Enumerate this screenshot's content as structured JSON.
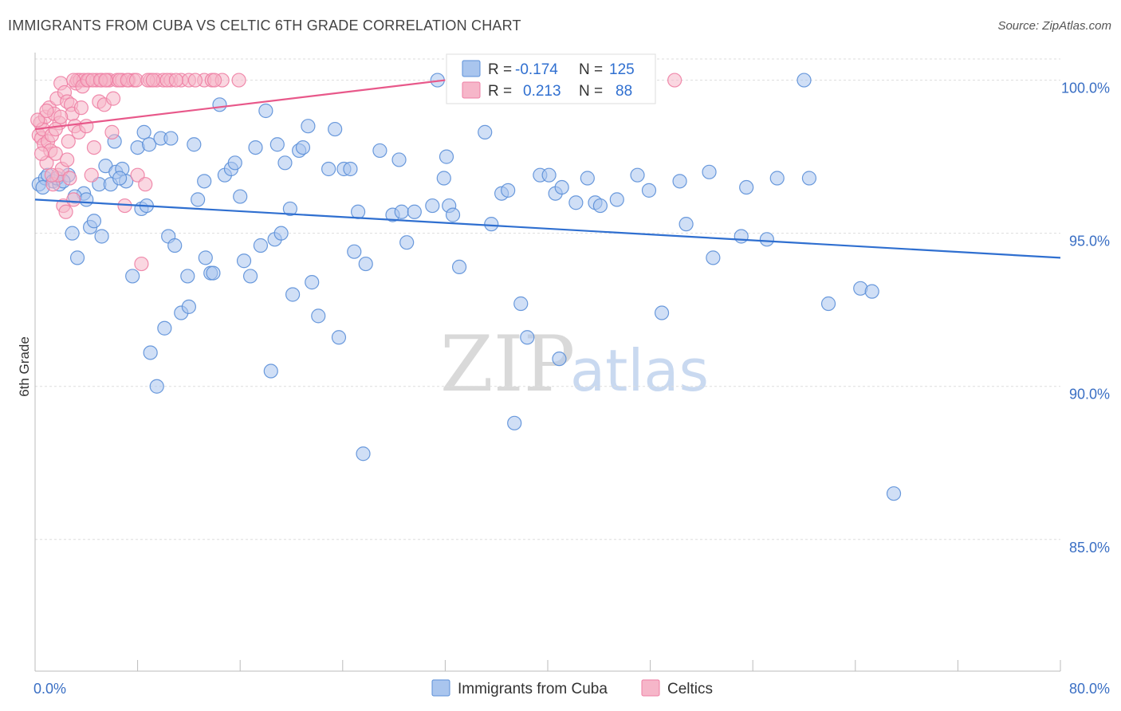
{
  "header": {
    "title": "IMMIGRANTS FROM CUBA VS CELTIC 6TH GRADE CORRELATION CHART",
    "source": "Source: ZipAtlas.com"
  },
  "watermark": {
    "zip": "ZIP",
    "atlas": "atlas"
  },
  "legend_box": {
    "rows": [
      {
        "r_label": "R =",
        "r_value": "-0.174",
        "n_label": "N =",
        "n_value": "125",
        "color": "#a9c5ee"
      },
      {
        "r_label": "R =",
        "r_value": "0.213",
        "n_label": "N =",
        "n_value": "88",
        "color": "#f6b6c9"
      }
    ]
  },
  "bottom_legend": [
    {
      "label": "Immigrants from Cuba",
      "color": "#a9c5ee"
    },
    {
      "label": "Celtics",
      "color": "#f6b6c9"
    }
  ],
  "chart_data": {
    "type": "scatter",
    "title": "IMMIGRANTS FROM CUBA VS CELTIC 6TH GRADE CORRELATION CHART",
    "xlabel": "",
    "ylabel": "6th Grade",
    "xlim": [
      0,
      80
    ],
    "ylim": [
      80.7,
      100.9
    ],
    "x_tick_labels": [
      "0.0%",
      "80.0%"
    ],
    "y_ticks": [
      85,
      90,
      95,
      100
    ],
    "y_tick_labels": [
      "85.0%",
      "90.0%",
      "95.0%",
      "100.0%"
    ],
    "grid": true,
    "colors": {
      "cuba": "#5b8fd8",
      "cuba_fill": "#a9c5ee",
      "cuba_line": "#2f6fd0",
      "celtics": "#ee7fa4",
      "celtics_fill": "#f6b6c9",
      "celtics_line": "#e8588a"
    },
    "series": [
      {
        "name": "Immigrants from Cuba",
        "trend": {
          "x": [
            0,
            80
          ],
          "y": [
            96.1,
            94.2
          ]
        },
        "points": [
          [
            0.3,
            96.6
          ],
          [
            0.8,
            96.8
          ],
          [
            1.0,
            96.9
          ],
          [
            1.4,
            96.7
          ],
          [
            1.9,
            96.6
          ],
          [
            2.6,
            96.9
          ],
          [
            2.9,
            95.0
          ],
          [
            3.3,
            94.2
          ],
          [
            3.8,
            96.3
          ],
          [
            4.3,
            95.2
          ],
          [
            4.6,
            95.4
          ],
          [
            5.0,
            96.6
          ],
          [
            5.2,
            94.9
          ],
          [
            5.5,
            97.2
          ],
          [
            5.9,
            96.6
          ],
          [
            6.2,
            98.0
          ],
          [
            6.3,
            97.0
          ],
          [
            6.8,
            97.1
          ],
          [
            7.1,
            96.7
          ],
          [
            7.6,
            93.6
          ],
          [
            8.0,
            97.8
          ],
          [
            8.3,
            95.8
          ],
          [
            8.5,
            98.3
          ],
          [
            8.7,
            95.9
          ],
          [
            8.9,
            97.9
          ],
          [
            9.0,
            91.1
          ],
          [
            9.5,
            90.0
          ],
          [
            9.8,
            98.1
          ],
          [
            10.1,
            91.9
          ],
          [
            10.4,
            94.9
          ],
          [
            10.6,
            98.1
          ],
          [
            10.9,
            94.6
          ],
          [
            11.4,
            92.4
          ],
          [
            11.9,
            93.6
          ],
          [
            12.0,
            92.6
          ],
          [
            12.4,
            97.9
          ],
          [
            12.7,
            96.1
          ],
          [
            13.2,
            96.7
          ],
          [
            13.3,
            94.2
          ],
          [
            13.7,
            93.7
          ],
          [
            13.9,
            93.7
          ],
          [
            14.4,
            99.2
          ],
          [
            14.8,
            96.9
          ],
          [
            15.3,
            97.1
          ],
          [
            15.6,
            97.3
          ],
          [
            16.0,
            96.2
          ],
          [
            16.3,
            94.1
          ],
          [
            16.8,
            93.6
          ],
          [
            17.2,
            97.8
          ],
          [
            17.6,
            94.6
          ],
          [
            18.0,
            99.0
          ],
          [
            18.4,
            90.5
          ],
          [
            18.7,
            94.8
          ],
          [
            18.9,
            97.9
          ],
          [
            19.2,
            95.0
          ],
          [
            19.5,
            97.3
          ],
          [
            19.9,
            95.8
          ],
          [
            20.1,
            93.0
          ],
          [
            20.6,
            97.7
          ],
          [
            20.9,
            97.8
          ],
          [
            21.3,
            98.5
          ],
          [
            21.6,
            93.4
          ],
          [
            22.1,
            92.3
          ],
          [
            22.9,
            97.1
          ],
          [
            23.4,
            98.4
          ],
          [
            23.7,
            91.6
          ],
          [
            24.1,
            97.1
          ],
          [
            24.6,
            97.1
          ],
          [
            24.9,
            94.4
          ],
          [
            25.2,
            95.7
          ],
          [
            25.8,
            94.0
          ],
          [
            26.9,
            97.7
          ],
          [
            27.9,
            95.6
          ],
          [
            28.4,
            97.4
          ],
          [
            28.6,
            95.7
          ],
          [
            29.0,
            94.7
          ],
          [
            29.6,
            95.7
          ],
          [
            31.0,
            95.9
          ],
          [
            31.4,
            100.0
          ],
          [
            31.9,
            96.8
          ],
          [
            32.1,
            97.5
          ],
          [
            32.3,
            95.9
          ],
          [
            32.6,
            95.6
          ],
          [
            33.1,
            93.9
          ],
          [
            25.6,
            87.8
          ],
          [
            35.1,
            98.3
          ],
          [
            35.6,
            95.3
          ],
          [
            36.4,
            96.3
          ],
          [
            36.9,
            96.4
          ],
          [
            37.4,
            88.8
          ],
          [
            37.9,
            92.7
          ],
          [
            38.4,
            91.6
          ],
          [
            39.4,
            96.9
          ],
          [
            40.1,
            96.9
          ],
          [
            40.6,
            96.3
          ],
          [
            40.9,
            90.9
          ],
          [
            41.1,
            96.5
          ],
          [
            42.2,
            96.0
          ],
          [
            43.1,
            96.8
          ],
          [
            43.7,
            96.0
          ],
          [
            44.1,
            95.9
          ],
          [
            45.4,
            96.1
          ],
          [
            47.0,
            96.9
          ],
          [
            47.9,
            96.4
          ],
          [
            48.9,
            92.4
          ],
          [
            50.3,
            96.7
          ],
          [
            50.8,
            95.3
          ],
          [
            52.6,
            97.0
          ],
          [
            52.9,
            94.2
          ],
          [
            55.1,
            94.9
          ],
          [
            55.5,
            96.5
          ],
          [
            57.1,
            94.8
          ],
          [
            57.9,
            96.8
          ],
          [
            60.0,
            100.0
          ],
          [
            60.4,
            96.8
          ],
          [
            61.9,
            92.7
          ],
          [
            64.4,
            93.2
          ],
          [
            65.3,
            93.1
          ],
          [
            67.0,
            86.5
          ],
          [
            0.6,
            96.5
          ],
          [
            1.7,
            96.8
          ],
          [
            2.2,
            96.7
          ],
          [
            3.1,
            96.2
          ],
          [
            4.0,
            96.1
          ],
          [
            6.6,
            96.8
          ]
        ]
      },
      {
        "name": "Celtics",
        "trend": {
          "x": [
            0,
            32
          ],
          "y": [
            98.4,
            100.0
          ]
        },
        "points": [
          [
            0.3,
            98.2
          ],
          [
            0.4,
            98.6
          ],
          [
            0.5,
            98.1
          ],
          [
            0.6,
            98.4
          ],
          [
            0.7,
            97.9
          ],
          [
            0.8,
            98.8
          ],
          [
            0.9,
            97.3
          ],
          [
            1.0,
            98.0
          ],
          [
            1.1,
            99.1
          ],
          [
            1.2,
            97.7
          ],
          [
            1.3,
            98.2
          ],
          [
            1.4,
            96.6
          ],
          [
            1.5,
            98.9
          ],
          [
            1.6,
            97.6
          ],
          [
            1.7,
            99.4
          ],
          [
            1.8,
            96.9
          ],
          [
            1.9,
            98.6
          ],
          [
            2.0,
            99.9
          ],
          [
            2.1,
            97.1
          ],
          [
            2.2,
            95.9
          ],
          [
            2.3,
            99.6
          ],
          [
            2.4,
            95.7
          ],
          [
            2.5,
            99.3
          ],
          [
            2.6,
            98.0
          ],
          [
            2.7,
            96.8
          ],
          [
            2.8,
            99.2
          ],
          [
            2.9,
            98.9
          ],
          [
            3.0,
            96.1
          ],
          [
            3.1,
            98.5
          ],
          [
            3.2,
            99.9
          ],
          [
            3.3,
            100.0
          ],
          [
            3.4,
            98.3
          ],
          [
            3.5,
            100.0
          ],
          [
            3.6,
            99.1
          ],
          [
            3.8,
            100.0
          ],
          [
            4.0,
            98.5
          ],
          [
            4.2,
            100.0
          ],
          [
            4.4,
            96.9
          ],
          [
            4.6,
            97.8
          ],
          [
            4.8,
            100.0
          ],
          [
            5.0,
            99.3
          ],
          [
            5.2,
            100.0
          ],
          [
            5.4,
            99.2
          ],
          [
            5.6,
            100.0
          ],
          [
            5.8,
            100.0
          ],
          [
            6.1,
            99.4
          ],
          [
            6.4,
            100.0
          ],
          [
            6.8,
            100.0
          ],
          [
            7.0,
            95.9
          ],
          [
            7.3,
            100.0
          ],
          [
            7.7,
            100.0
          ],
          [
            8.0,
            96.9
          ],
          [
            8.3,
            94.0
          ],
          [
            8.6,
            96.6
          ],
          [
            9.0,
            100.0
          ],
          [
            9.5,
            100.0
          ],
          [
            10.0,
            100.0
          ],
          [
            10.6,
            100.0
          ],
          [
            11.4,
            100.0
          ],
          [
            12.0,
            100.0
          ],
          [
            13.2,
            100.0
          ],
          [
            13.8,
            100.0
          ],
          [
            14.6,
            100.0
          ],
          [
            15.9,
            100.0
          ],
          [
            49.9,
            100.0
          ],
          [
            0.2,
            98.7
          ],
          [
            0.5,
            97.6
          ],
          [
            0.9,
            99.0
          ],
          [
            1.3,
            96.9
          ],
          [
            1.6,
            98.4
          ],
          [
            2.0,
            98.8
          ],
          [
            2.5,
            97.4
          ],
          [
            3.0,
            100.0
          ],
          [
            3.7,
            99.8
          ],
          [
            4.1,
            100.0
          ],
          [
            4.5,
            100.0
          ],
          [
            5.1,
            100.0
          ],
          [
            5.5,
            100.0
          ],
          [
            6.0,
            98.3
          ],
          [
            6.6,
            100.0
          ],
          [
            7.2,
            100.0
          ],
          [
            7.9,
            100.0
          ],
          [
            8.8,
            100.0
          ],
          [
            9.2,
            100.0
          ],
          [
            10.3,
            100.0
          ],
          [
            11.0,
            100.0
          ],
          [
            12.5,
            100.0
          ],
          [
            14.0,
            100.0
          ]
        ]
      }
    ]
  }
}
